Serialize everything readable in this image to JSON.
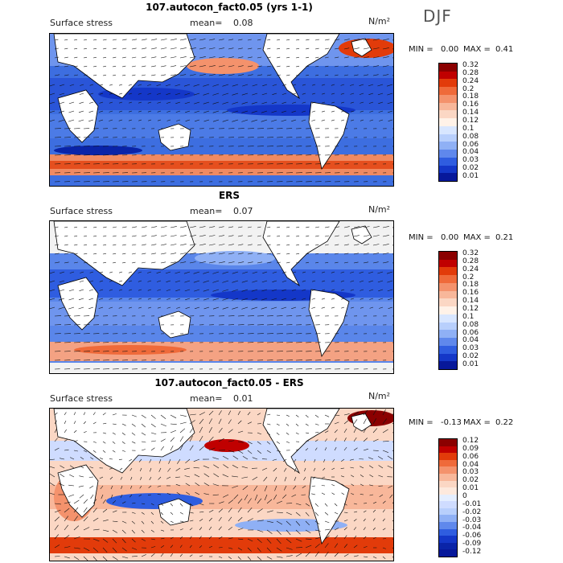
{
  "season": "DJF",
  "colors": {
    "twelve": [
      "#8b0000",
      "#c00000",
      "#e23b0a",
      "#ef6a3a",
      "#f4926c",
      "#f8b79a",
      "#fbd7c4",
      "#fff2e8",
      "#d8e6ff",
      "#b8cffc",
      "#8fb0f5",
      "#5f88ec",
      "#2f5de0",
      "#1437c8",
      "#07189a"
    ],
    "diff": [
      "#8b0000",
      "#c00000",
      "#e23b0a",
      "#ef6a3a",
      "#f4926c",
      "#f8b79a",
      "#fbd7c4",
      "#fde9dd",
      "#e4eeff",
      "#cfdcff",
      "#b8cffc",
      "#8fb0f5",
      "#5f88ec",
      "#2f5de0",
      "#1437c8",
      "#0a24a8",
      "#07189a"
    ],
    "land": "#ffffff",
    "coast": "#000000"
  },
  "panels": [
    {
      "title": "107.autocon_fact0.05 (yrs 1-1)",
      "field_label": "Surface stress",
      "mean_label": "mean=",
      "mean_value": "0.08",
      "units": "N/m²",
      "min_label": "MIN =",
      "min_value": "0.00",
      "max_label": "MAX =",
      "max_value": "0.41",
      "colorbar_ticks": [
        "0.32",
        "0.28",
        "0.24",
        "0.2",
        "0.18",
        "0.16",
        "0.14",
        "0.12",
        "0.1",
        "0.08",
        "0.06",
        "0.04",
        "0.03",
        "0.02",
        "0.01"
      ]
    },
    {
      "title": "ERS",
      "field_label": "Surface stress",
      "mean_label": "mean=",
      "mean_value": "0.07",
      "units": "N/m²",
      "min_label": "MIN =",
      "min_value": "0.00",
      "max_label": "MAX =",
      "max_value": "0.21",
      "colorbar_ticks": [
        "0.32",
        "0.28",
        "0.24",
        "0.2",
        "0.18",
        "0.16",
        "0.14",
        "0.12",
        "0.1",
        "0.08",
        "0.06",
        "0.04",
        "0.03",
        "0.02",
        "0.01"
      ]
    },
    {
      "title": "107.autocon_fact0.05 - ERS",
      "field_label": "Surface stress",
      "mean_label": "mean=",
      "mean_value": "0.01",
      "units": "N/m²",
      "min_label": "MIN =",
      "min_value": "-0.13",
      "max_label": "MAX =",
      "max_value": "0.22",
      "colorbar_ticks": [
        "0.12",
        "0.09",
        "0.06",
        "0.04",
        "0.03",
        "0.02",
        "0.01",
        "0",
        "-0.01",
        "-0.02",
        "-0.03",
        "-0.04",
        "-0.06",
        "-0.09",
        "-0.12"
      ]
    }
  ],
  "chart_data": [
    {
      "type": "heatmap",
      "title": "107.autocon_fact0.05 (yrs 1-1)",
      "variable": "Surface stress",
      "units": "N/m2",
      "mean": 0.08,
      "min": 0.0,
      "max": 0.41,
      "levels": [
        0.01,
        0.02,
        0.03,
        0.04,
        0.06,
        0.08,
        0.1,
        0.12,
        0.14,
        0.16,
        0.18,
        0.2,
        0.24,
        0.28,
        0.32
      ],
      "overlay": "wind stress vectors"
    },
    {
      "type": "heatmap",
      "title": "ERS",
      "variable": "Surface stress",
      "units": "N/m2",
      "mean": 0.07,
      "min": 0.0,
      "max": 0.21,
      "levels": [
        0.01,
        0.02,
        0.03,
        0.04,
        0.06,
        0.08,
        0.1,
        0.12,
        0.14,
        0.16,
        0.18,
        0.2,
        0.24,
        0.28,
        0.32
      ],
      "overlay": "wind stress vectors"
    },
    {
      "type": "heatmap",
      "title": "107.autocon_fact0.05 - ERS",
      "variable": "Surface stress",
      "units": "N/m2",
      "mean": 0.01,
      "min": -0.13,
      "max": 0.22,
      "levels": [
        -0.12,
        -0.09,
        -0.06,
        -0.04,
        -0.03,
        -0.02,
        -0.01,
        0,
        0.01,
        0.02,
        0.03,
        0.04,
        0.06,
        0.09,
        0.12
      ],
      "overlay": "wind stress difference vectors"
    }
  ]
}
